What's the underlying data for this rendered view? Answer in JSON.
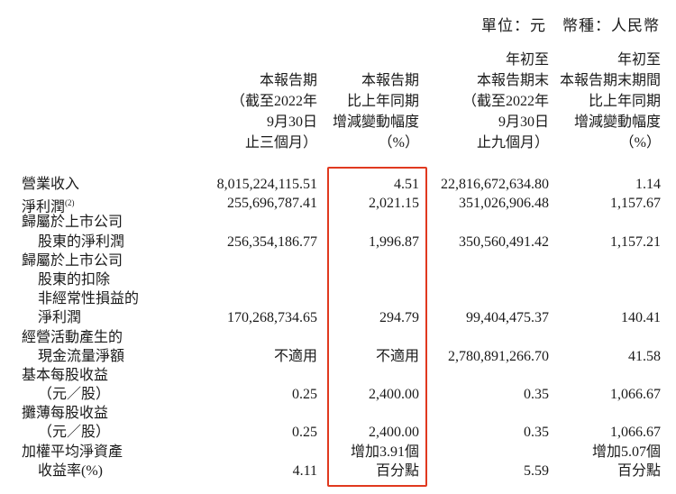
{
  "unit_line": "單位：元　幣種：人民幣",
  "columns": [
    {
      "lines": [
        "本報告期",
        "（截至2022年",
        "9月30日",
        "止三個月）"
      ]
    },
    {
      "lines": [
        "本報告期",
        "比上年同期",
        "增減變動幅度",
        "（%）"
      ]
    },
    {
      "lines": [
        "年初至",
        "本報告期末",
        "（截至2022年",
        "9月30日",
        "止九個月）"
      ]
    },
    {
      "lines": [
        "年初至",
        "本報告期末期間",
        "比上年同期",
        "增減變動幅度",
        "（%）"
      ]
    }
  ],
  "highlight_color": "#e0391f",
  "rows": [
    {
      "label": [
        "營業收入"
      ],
      "sup": "",
      "values": [
        [
          "8,015,224,115.51"
        ],
        [
          "4.51"
        ],
        [
          "22,816,672,634.80"
        ],
        [
          "1.14"
        ]
      ]
    },
    {
      "label": [
        "淨利潤"
      ],
      "sup": "(2)",
      "values": [
        [
          "255,696,787.41"
        ],
        [
          "2,021.15"
        ],
        [
          "351,026,906.48"
        ],
        [
          "1,157.67"
        ]
      ]
    },
    {
      "label": [
        "歸屬於上市公司",
        "股東的淨利潤"
      ],
      "sup": "",
      "values": [
        [
          "256,354,186.77"
        ],
        [
          "1,996.87"
        ],
        [
          "350,560,491.42"
        ],
        [
          "1,157.21"
        ]
      ]
    },
    {
      "label": [
        "歸屬於上市公司",
        "股東的扣除",
        "非經常性損益的",
        "淨利潤"
      ],
      "sup": "",
      "values": [
        [
          "170,268,734.65"
        ],
        [
          "294.79"
        ],
        [
          "99,404,475.37"
        ],
        [
          "140.41"
        ]
      ]
    },
    {
      "label": [
        "經營活動產生的",
        "現金流量淨額"
      ],
      "sup": "",
      "values": [
        [
          "不適用"
        ],
        [
          "不適用"
        ],
        [
          "2,780,891,266.70"
        ],
        [
          "41.58"
        ]
      ]
    },
    {
      "label": [
        "基本每股收益",
        "（元／股）"
      ],
      "sup": "",
      "values": [
        [
          "0.25"
        ],
        [
          "2,400.00"
        ],
        [
          "0.35"
        ],
        [
          "1,066.67"
        ]
      ]
    },
    {
      "label": [
        "攤薄每股收益",
        "（元／股）"
      ],
      "sup": "",
      "values": [
        [
          "0.25"
        ],
        [
          "2,400.00"
        ],
        [
          "0.35"
        ],
        [
          "1,066.67"
        ]
      ]
    },
    {
      "label": [
        "加權平均淨資產",
        "收益率(%)"
      ],
      "sup": "",
      "values": [
        [
          "4.11"
        ],
        [
          "增加3.91個",
          "百分點"
        ],
        [
          "5.59"
        ],
        [
          "增加5.07個",
          "百分點"
        ]
      ]
    }
  ]
}
